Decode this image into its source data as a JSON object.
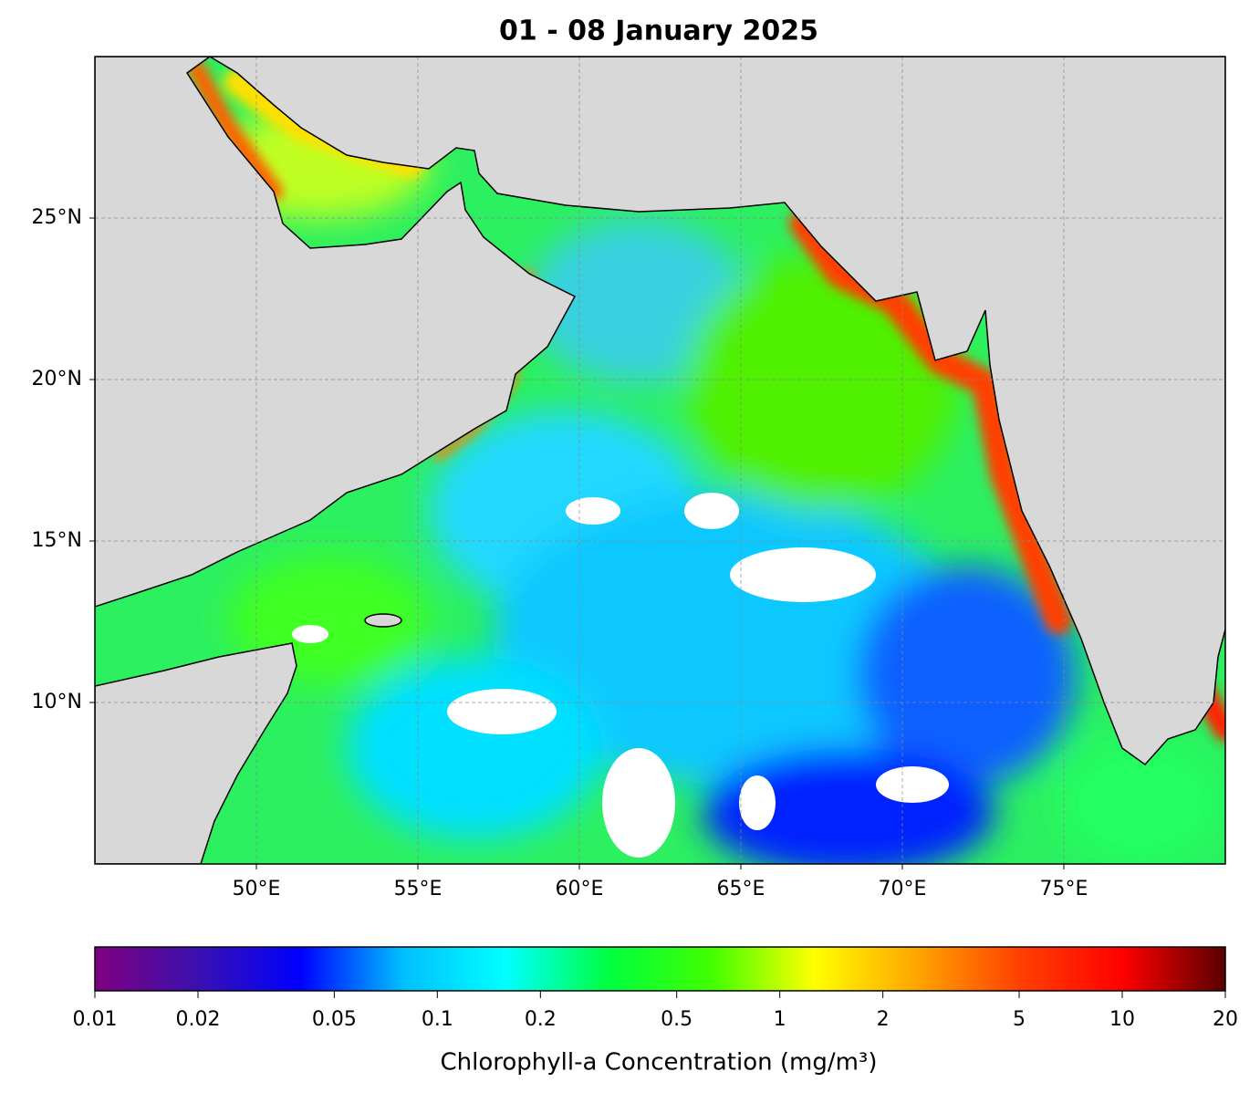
{
  "title": "01 - 08 January 2025",
  "map": {
    "xlim": [
      45,
      80
    ],
    "ylim": [
      5,
      30
    ],
    "xticks": [
      {
        "value": 50,
        "label": "50°E"
      },
      {
        "value": 55,
        "label": "55°E"
      },
      {
        "value": 60,
        "label": "60°E"
      },
      {
        "value": 65,
        "label": "65°E"
      },
      {
        "value": 70,
        "label": "70°E"
      },
      {
        "value": 75,
        "label": "75°E"
      }
    ],
    "yticks": [
      {
        "value": 10,
        "label": "10°N"
      },
      {
        "value": 15,
        "label": "15°N"
      },
      {
        "value": 20,
        "label": "20°N"
      },
      {
        "value": 25,
        "label": "25°N"
      }
    ],
    "grid": true
  },
  "colorbar": {
    "label": "Chlorophyll-a Concentration (mg/m³)",
    "scale": "log",
    "lim": [
      0.01,
      20
    ],
    "ticks": [
      0.01,
      0.02,
      0.05,
      0.1,
      0.2,
      0.5,
      1,
      2,
      5,
      10,
      20
    ],
    "colors": [
      "#800080",
      "#3a10b0",
      "#0000ff",
      "#00bfff",
      "#00ffff",
      "#00ff40",
      "#40ff00",
      "#ffff00",
      "#ffa500",
      "#ff4000",
      "#ff0000",
      "#5a0000"
    ]
  }
}
